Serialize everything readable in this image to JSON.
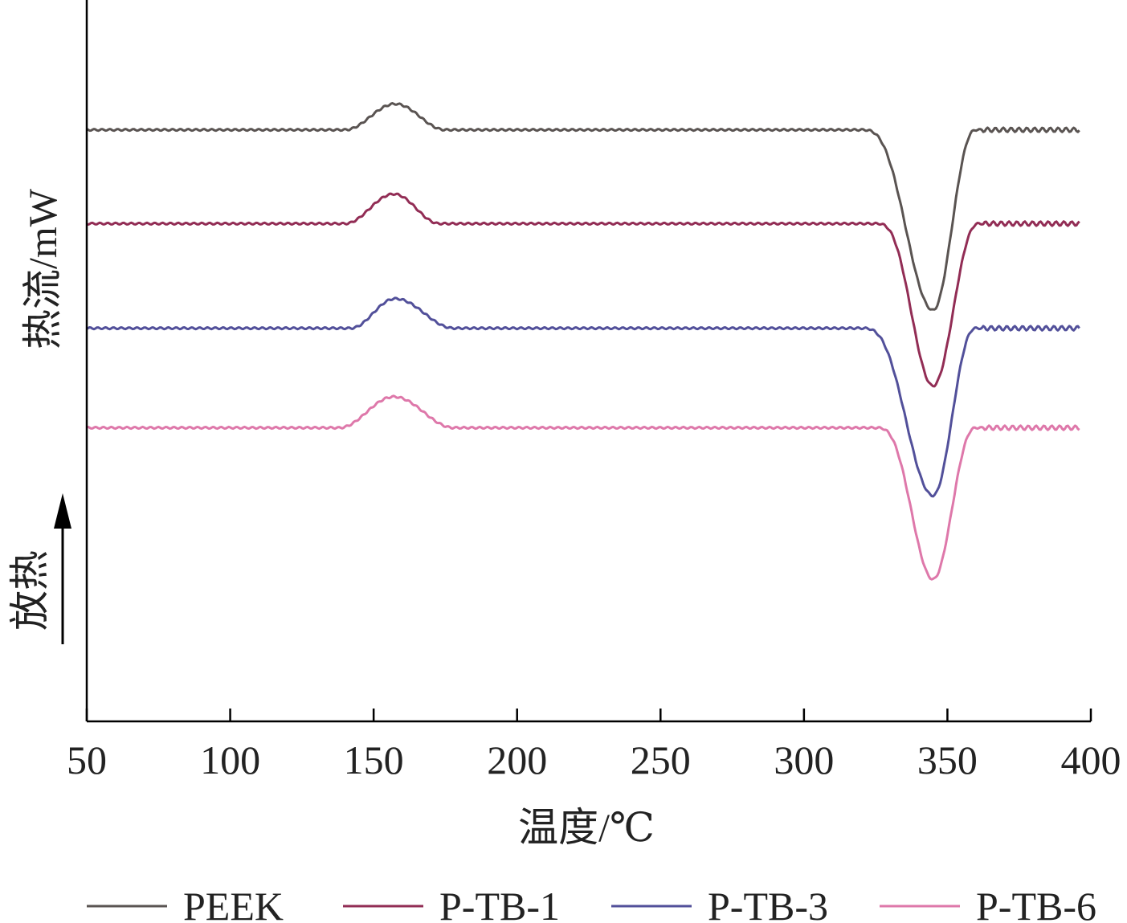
{
  "chart_data": {
    "type": "line",
    "xlabel": "温度/℃",
    "ylabel": "热流/mW",
    "exo_label": "放热",
    "xlim": [
      50,
      400
    ],
    "xticks": [
      50,
      100,
      150,
      200,
      250,
      300,
      350,
      400
    ],
    "grid": false,
    "y_ticks_shown": false,
    "legend_position": "bottom",
    "series": [
      {
        "name": "PEEK",
        "color": "#5a5452",
        "baseline": 0.82,
        "crystallization_peak": {
          "onset": 140,
          "peak": 157.5,
          "end": 175,
          "height": 0.036
        },
        "melting_peak": {
          "onset": 320,
          "peak": 345,
          "end": 360,
          "depth": 0.25
        }
      },
      {
        "name": "P-TB-1",
        "color": "#922d55",
        "baseline": 0.69,
        "crystallization_peak": {
          "onset": 140,
          "peak": 157,
          "end": 173,
          "height": 0.041
        },
        "melting_peak": {
          "onset": 325,
          "peak": 345,
          "end": 361,
          "depth": 0.225
        }
      },
      {
        "name": "P-TB-3",
        "color": "#52509a",
        "baseline": 0.545,
        "crystallization_peak": {
          "onset": 142,
          "peak": 157.5,
          "end": 178,
          "height": 0.041
        },
        "melting_peak": {
          "onset": 320,
          "peak": 345,
          "end": 360,
          "depth": 0.232
        }
      },
      {
        "name": "P-TB-6",
        "color": "#de78aa",
        "baseline": 0.407,
        "crystallization_peak": {
          "onset": 138,
          "peak": 157,
          "end": 178,
          "height": 0.043
        },
        "melting_peak": {
          "onset": 325,
          "peak": 345,
          "end": 360,
          "depth": 0.21
        }
      }
    ]
  }
}
